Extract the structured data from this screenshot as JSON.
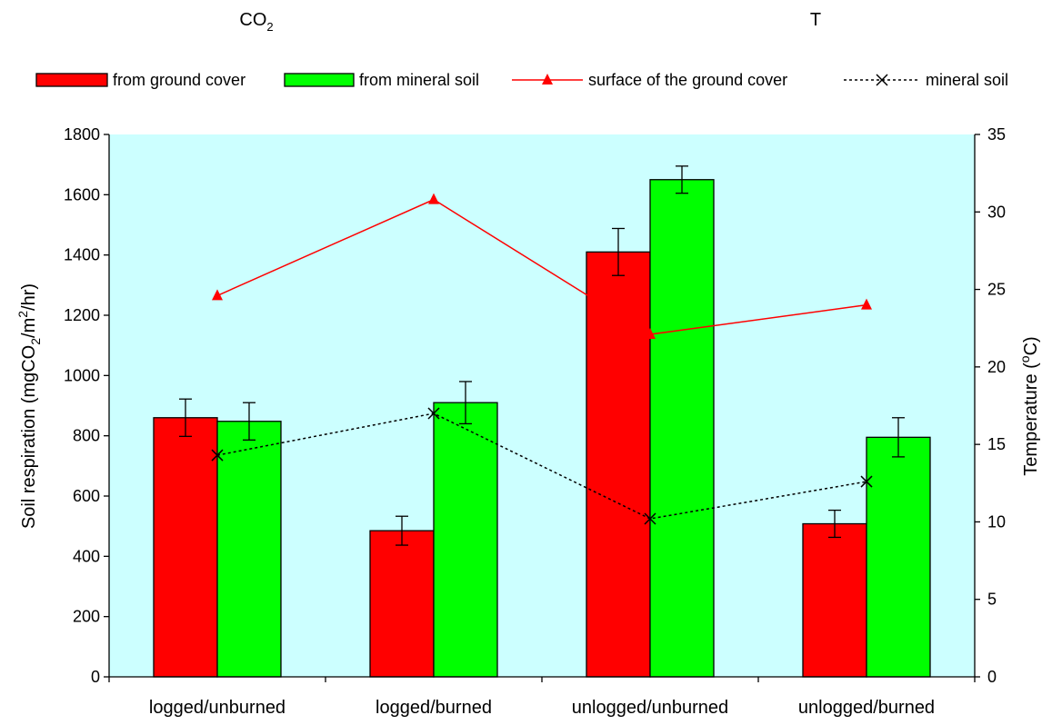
{
  "chart_data": {
    "type": "bar",
    "group_titles": {
      "co2_main": "CO",
      "co2_sub": "2",
      "t": "T"
    },
    "categories": [
      "logged/unburned",
      "logged/burned",
      "unlogged/unburned",
      "unlogged/burned"
    ],
    "series": [
      {
        "name": "from ground cover",
        "type": "bar",
        "axis": "left",
        "color": "#ff0000",
        "values": [
          860,
          485,
          1410,
          508
        ],
        "errors": [
          62,
          48,
          78,
          45
        ]
      },
      {
        "name": "from mineral soil",
        "type": "bar",
        "axis": "left",
        "color": "#00ff00",
        "values": [
          848,
          910,
          1650,
          795
        ],
        "errors": [
          62,
          70,
          45,
          65
        ]
      },
      {
        "name": "surface of the ground cover",
        "type": "line",
        "axis": "right",
        "color": "#ff0000",
        "marker": "triangle",
        "values": [
          24.6,
          30.8,
          22.1,
          24.0
        ]
      },
      {
        "name": "mineral soil",
        "type": "line",
        "axis": "right",
        "color": "#000000",
        "marker": "x",
        "line_style": "dotted",
        "values": [
          14.3,
          17.0,
          10.2,
          12.6
        ]
      }
    ],
    "ylabel": {
      "prefix": "Soil respiration (mgCO",
      "sub": "2",
      "mid": "/m",
      "sup": "2",
      "suffix": "/hr)"
    },
    "y2label": {
      "prefix": "Temperature (",
      "sup": "o",
      "suffix": "C)"
    },
    "ylim": [
      0,
      1800
    ],
    "yticks": [
      0,
      200,
      400,
      600,
      800,
      1000,
      1200,
      1400,
      1600,
      1800
    ],
    "y2lim": [
      0,
      35
    ],
    "y2ticks": [
      0,
      5,
      10,
      15,
      20,
      25,
      30,
      35
    ],
    "plot_background": "#ccffff",
    "grid": false,
    "legend_position": "top"
  }
}
